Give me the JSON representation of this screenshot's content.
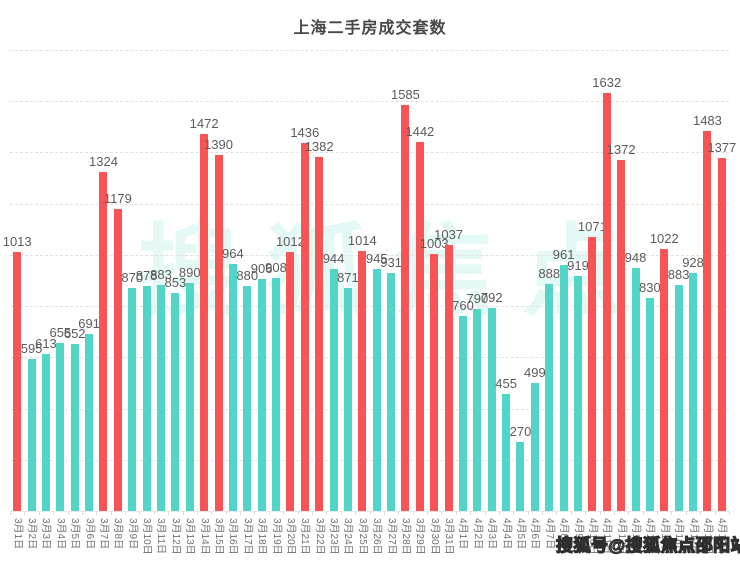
{
  "title": "上海二手房成交套数",
  "watermark": {
    "center": "搜狐焦点",
    "bottom_right": "搜狐号@搜狐焦点邵阳站"
  },
  "chart_data": {
    "type": "bar",
    "title": "上海二手房成交套数",
    "xlabel": "",
    "ylabel": "",
    "categories": [
      "3月1日",
      "3月2日",
      "3月3日",
      "3月4日",
      "3月5日",
      "3月6日",
      "3月7日",
      "3月8日",
      "3月9日",
      "3月10日",
      "3月11日",
      "3月12日",
      "3月13日",
      "3月14日",
      "3月15日",
      "3月16日",
      "3月17日",
      "3月18日",
      "3月19日",
      "3月20日",
      "3月21日",
      "3月22日",
      "3月23日",
      "3月24日",
      "3月25日",
      "3月26日",
      "3月27日",
      "3月28日",
      "3月29日",
      "3月30日",
      "3月31日",
      "4月1日",
      "4月2日",
      "4月3日",
      "4月4日",
      "4月5日",
      "4月6日",
      "4月7日",
      "4月8日",
      "4月9日",
      "4月10日",
      "4月11日",
      "4月12日",
      "4月13日",
      "4月14日",
      "4月15日",
      "4月16日",
      "4月17日",
      "4月18日",
      "4月19日"
    ],
    "values": [
      1013,
      595,
      613,
      655,
      652,
      691,
      1324,
      1179,
      870,
      878,
      883,
      853,
      890,
      1472,
      1390,
      964,
      880,
      906,
      908,
      1012,
      1436,
      1382,
      944,
      871,
      1014,
      945,
      931,
      1585,
      1442,
      1003,
      1037,
      760,
      790,
      792,
      455,
      270,
      499,
      888,
      961,
      919,
      1071,
      1632,
      1372,
      948,
      830,
      1022,
      883,
      928,
      1483,
      1377
    ],
    "ylim": [
      0,
      1800
    ],
    "grid_step": 200,
    "grid": true,
    "legend": "none",
    "value_labels": "above-bars",
    "x_label_rotation_deg": 90,
    "highlight_threshold": 1000,
    "colors": {
      "high": "#f95455",
      "normal": "#52d5c6",
      "grid": "#e2e2e2",
      "value_label": "#5b5b5b",
      "axis_label": "#6f6f6f",
      "title": "#474747"
    }
  }
}
